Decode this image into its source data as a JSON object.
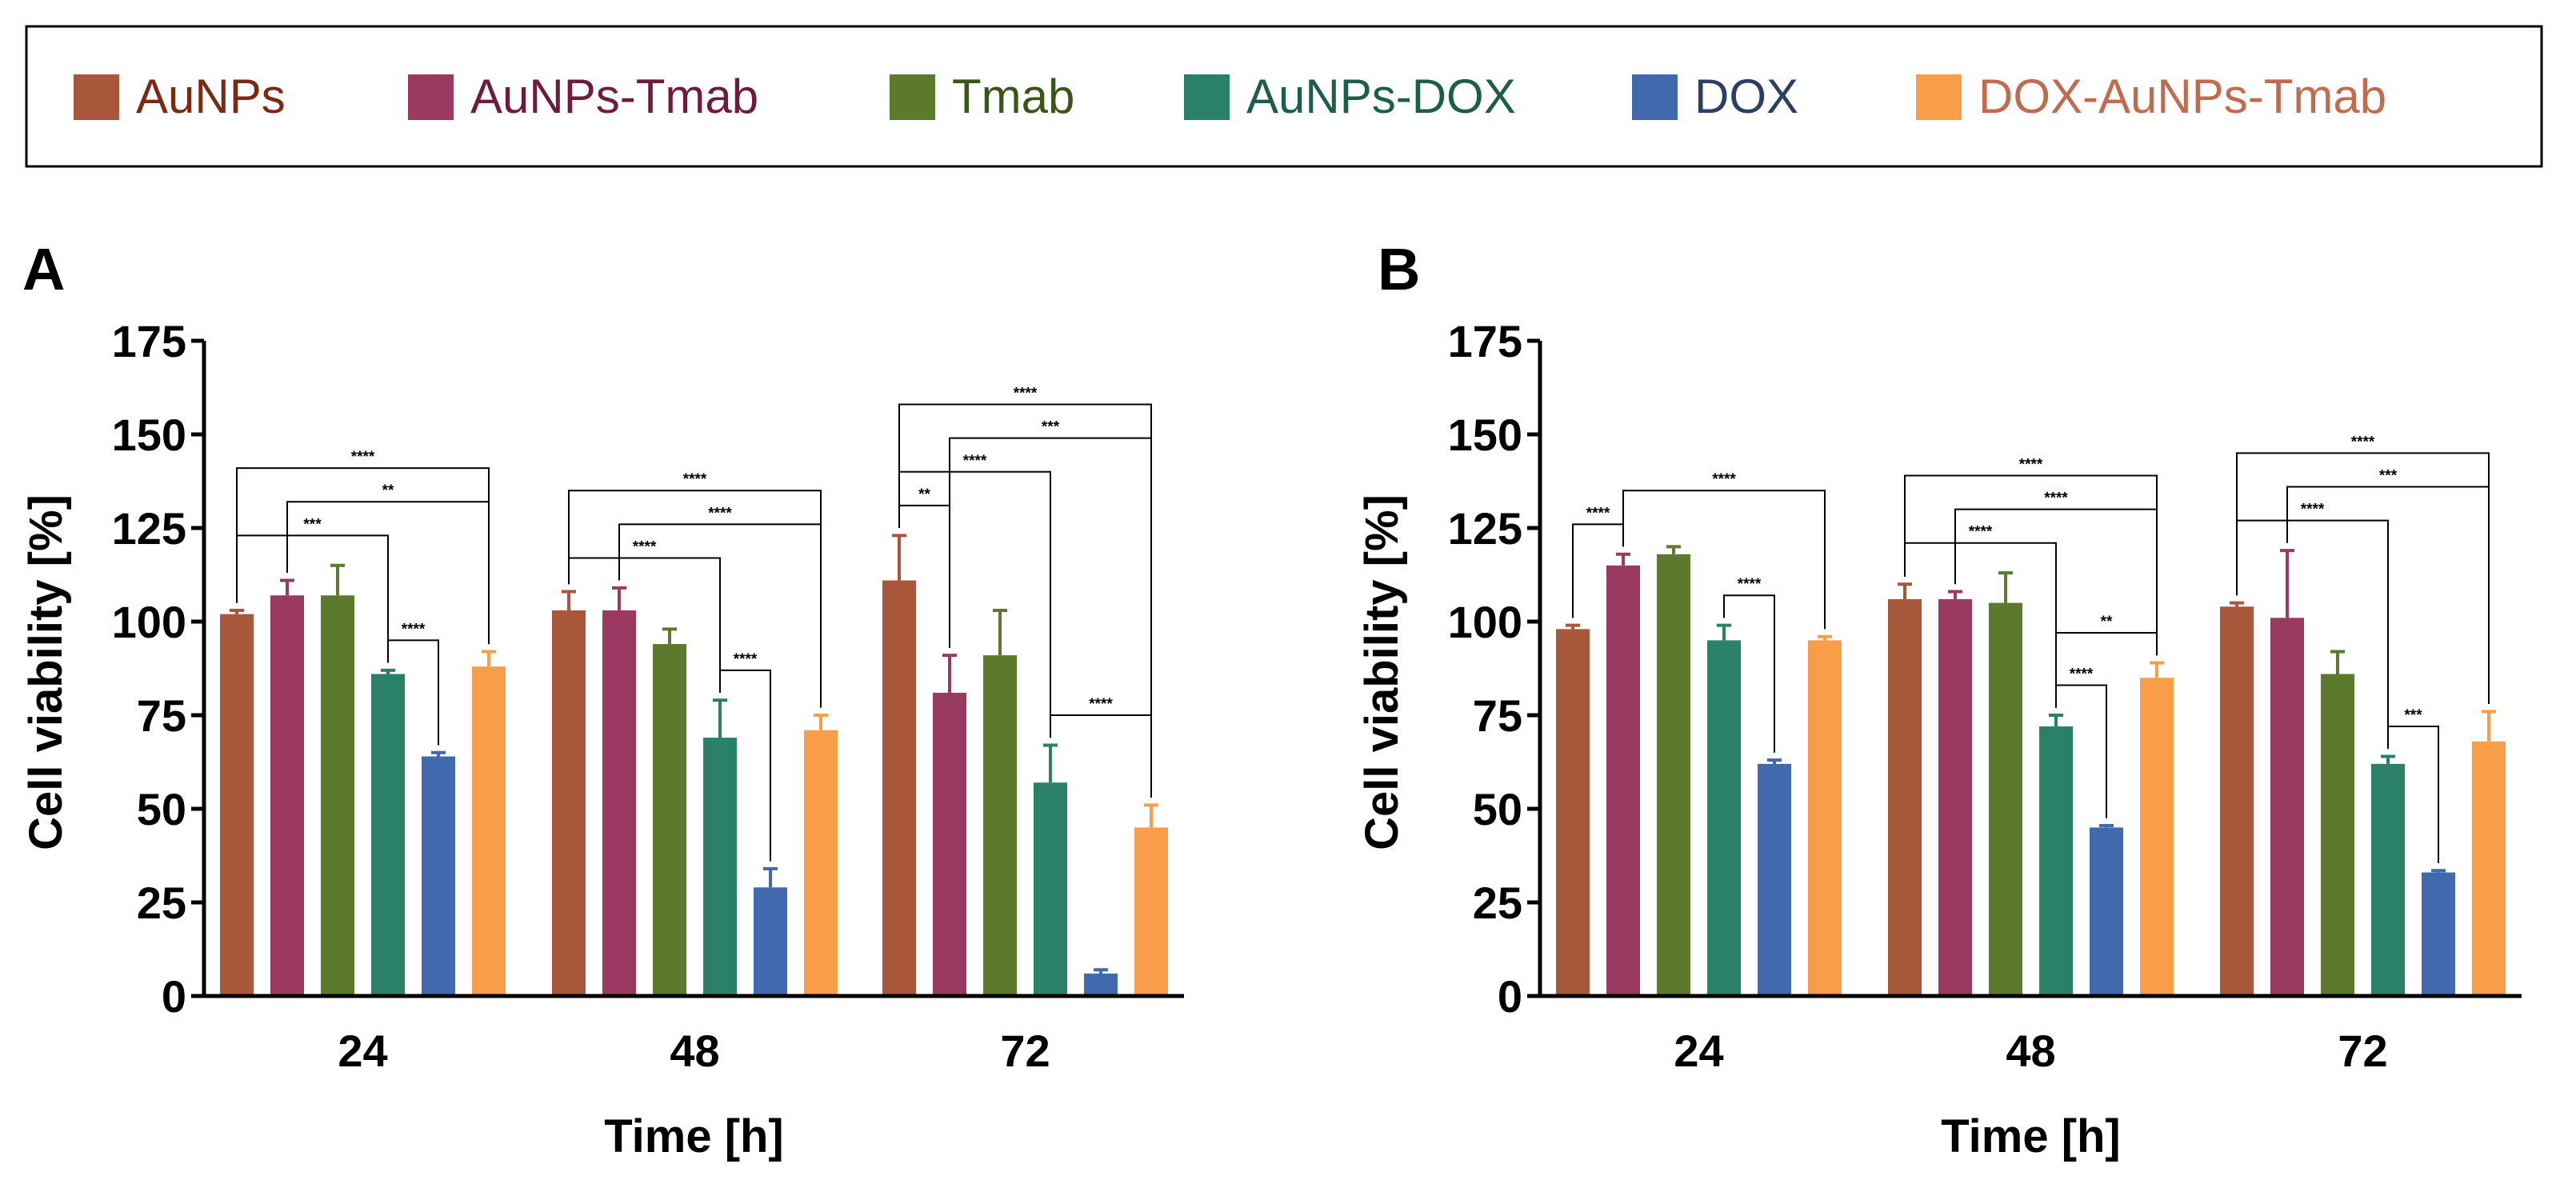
{
  "legend": {
    "items": [
      {
        "label": "AuNPs",
        "color": "#a8573a",
        "text_color": "#7a2a12"
      },
      {
        "label": "AuNPs-Tmab",
        "color": "#9b3a60",
        "text_color": "#6e1b3c"
      },
      {
        "label": "Tmab",
        "color": "#5b7a2c",
        "text_color": "#3b5418"
      },
      {
        "label": "AuNPs-DOX",
        "color": "#2a8068",
        "text_color": "#1c5e4a"
      },
      {
        "label": "DOX",
        "color": "#4169ad",
        "text_color": "#2a3f63"
      },
      {
        "label": "DOX-AuNPs-Tmab",
        "color": "#f89e4a",
        "text_color": "#c26a4e"
      }
    ]
  },
  "chart_data": [
    {
      "panel": "A",
      "type": "bar",
      "xlabel": "Time [h]",
      "ylabel": "Cell viability [%]",
      "ylim": [
        0,
        175
      ],
      "yticks": [
        "0",
        "25",
        "50",
        "75",
        "100",
        "125",
        "150",
        "175"
      ],
      "categories": [
        "24",
        "48",
        "72"
      ],
      "series": [
        {
          "name": "AuNPs",
          "values": [
            102,
            103,
            111
          ],
          "errors": [
            1,
            5,
            12
          ]
        },
        {
          "name": "AuNPs-Tmab",
          "values": [
            107,
            103,
            81
          ],
          "errors": [
            4,
            6,
            10
          ]
        },
        {
          "name": "Tmab",
          "values": [
            107,
            94,
            91
          ],
          "errors": [
            8,
            4,
            12
          ]
        },
        {
          "name": "AuNPs-DOX",
          "values": [
            86,
            69,
            57
          ],
          "errors": [
            1,
            10,
            10
          ]
        },
        {
          "name": "DOX",
          "values": [
            64,
            29,
            6
          ],
          "errors": [
            1,
            5,
            1
          ]
        },
        {
          "name": "DOX-AuNPs-Tmab",
          "values": [
            88,
            71,
            45
          ],
          "errors": [
            4,
            4,
            6
          ]
        }
      ],
      "significance": [
        {
          "group": 0,
          "from": 0,
          "to": 5,
          "label": "****"
        },
        {
          "group": 0,
          "from": 1,
          "to": 5,
          "label": "**"
        },
        {
          "group": 0,
          "from": 0,
          "to": 3,
          "label": "***"
        },
        {
          "group": 0,
          "from": 3,
          "to": 4,
          "label": "****"
        },
        {
          "group": 1,
          "from": 1,
          "to": 5,
          "label": "****"
        },
        {
          "group": 1,
          "from": 0,
          "to": 5,
          "label": "****"
        },
        {
          "group": 1,
          "from": 0,
          "to": 3,
          "label": "****"
        },
        {
          "group": 1,
          "from": 3,
          "to": 4,
          "label": "****"
        },
        {
          "group": 2,
          "from": 1,
          "to": 5,
          "label": "***"
        },
        {
          "group": 2,
          "from": 0,
          "to": 5,
          "label": "****"
        },
        {
          "group": 2,
          "from": 0,
          "to": 3,
          "label": "****"
        },
        {
          "group": 2,
          "from": 0,
          "to": 1,
          "label": "**"
        },
        {
          "group": 2,
          "from": 3,
          "to": 5,
          "label": "****"
        }
      ]
    },
    {
      "panel": "B",
      "type": "bar",
      "xlabel": "Time [h]",
      "ylabel": "Cell viability [%]",
      "ylim": [
        0,
        175
      ],
      "yticks": [
        "0",
        "25",
        "50",
        "75",
        "100",
        "125",
        "150",
        "175"
      ],
      "categories": [
        "24",
        "48",
        "72"
      ],
      "series": [
        {
          "name": "AuNPs",
          "values": [
            98,
            106,
            104
          ],
          "errors": [
            1,
            4,
            1
          ]
        },
        {
          "name": "AuNPs-Tmab",
          "values": [
            115,
            106,
            101
          ],
          "errors": [
            3,
            2,
            18
          ]
        },
        {
          "name": "Tmab",
          "values": [
            118,
            105,
            86
          ],
          "errors": [
            2,
            8,
            6
          ]
        },
        {
          "name": "AuNPs-DOX",
          "values": [
            95,
            72,
            62
          ],
          "errors": [
            4,
            3,
            2
          ]
        },
        {
          "name": "DOX",
          "values": [
            62,
            45,
            33
          ],
          "errors": [
            1,
            0.5,
            0.5
          ]
        },
        {
          "name": "DOX-AuNPs-Tmab",
          "values": [
            95,
            85,
            68
          ],
          "errors": [
            1,
            4,
            8
          ]
        }
      ],
      "significance": [
        {
          "group": 0,
          "from": 0,
          "to": 1,
          "label": "****"
        },
        {
          "group": 0,
          "from": 1,
          "to": 5,
          "label": "****"
        },
        {
          "group": 0,
          "from": 3,
          "to": 4,
          "label": "****"
        },
        {
          "group": 1,
          "from": 1,
          "to": 5,
          "label": "****"
        },
        {
          "group": 1,
          "from": 0,
          "to": 5,
          "label": "****"
        },
        {
          "group": 1,
          "from": 0,
          "to": 3,
          "label": "****"
        },
        {
          "group": 1,
          "from": 3,
          "to": 5,
          "label": "**"
        },
        {
          "group": 1,
          "from": 3,
          "to": 4,
          "label": "****"
        },
        {
          "group": 2,
          "from": 1,
          "to": 5,
          "label": "***"
        },
        {
          "group": 2,
          "from": 0,
          "to": 5,
          "label": "****"
        },
        {
          "group": 2,
          "from": 0,
          "to": 3,
          "label": "****"
        },
        {
          "group": 2,
          "from": 3,
          "to": 4,
          "label": "***"
        }
      ]
    }
  ]
}
